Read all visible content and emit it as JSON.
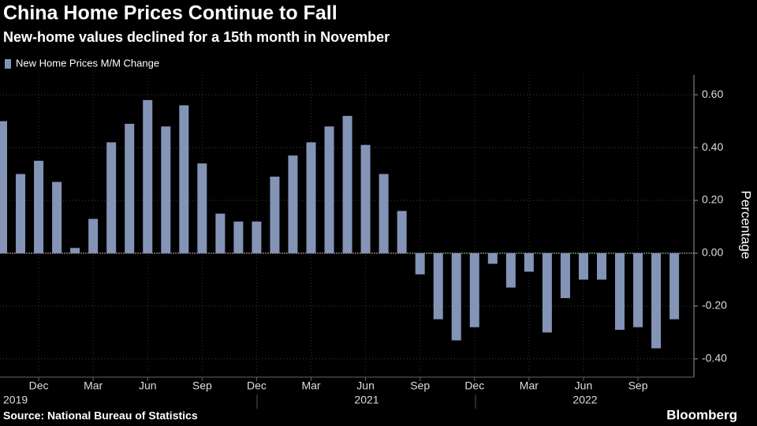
{
  "chart_data": {
    "type": "bar",
    "title": "China Home Prices Continue to Fall",
    "subtitle": "New-home values declined for a 15th month in November",
    "series": [
      {
        "name": "New Home Prices M/M Change",
        "color": "#8394b6",
        "values": [
          0.5,
          0.3,
          0.35,
          0.27,
          0.02,
          0.13,
          0.42,
          0.49,
          0.58,
          0.48,
          0.56,
          0.34,
          0.15,
          0.12,
          0.12,
          0.29,
          0.37,
          0.42,
          0.48,
          0.52,
          0.41,
          0.3,
          0.16,
          -0.08,
          -0.25,
          -0.33,
          -0.28,
          -0.04,
          -0.13,
          -0.07,
          -0.3,
          -0.17,
          -0.1,
          -0.1,
          -0.29,
          -0.28,
          -0.36,
          -0.25
        ]
      }
    ],
    "categories": [
      null,
      null,
      "Dec",
      null,
      null,
      "Mar",
      null,
      null,
      "Jun",
      null,
      null,
      "Sep",
      null,
      null,
      "Dec",
      null,
      null,
      "Mar",
      null,
      null,
      "Jun",
      null,
      null,
      "Sep",
      null,
      null,
      "Dec",
      null,
      null,
      "Mar",
      null,
      null,
      "Jun",
      null,
      null,
      "Sep",
      null,
      null
    ],
    "year_labels": [
      "2019",
      "2021",
      "2022"
    ],
    "ylim": [
      -0.46,
      0.675
    ],
    "yticks": [
      {
        "value": -0.4,
        "label": "-0.40"
      },
      {
        "value": -0.2,
        "label": "-0.20"
      },
      {
        "value": 0,
        "label": "0.00"
      },
      {
        "value": 0.2,
        "label": "0.20"
      },
      {
        "value": 0.4,
        "label": "0.40"
      },
      {
        "value": 0.6,
        "label": "0.60"
      }
    ],
    "y_axis_label": "Percentage",
    "source": "Source: National Bureau of Statistics",
    "brand": "Bloomberg",
    "grid": true
  }
}
